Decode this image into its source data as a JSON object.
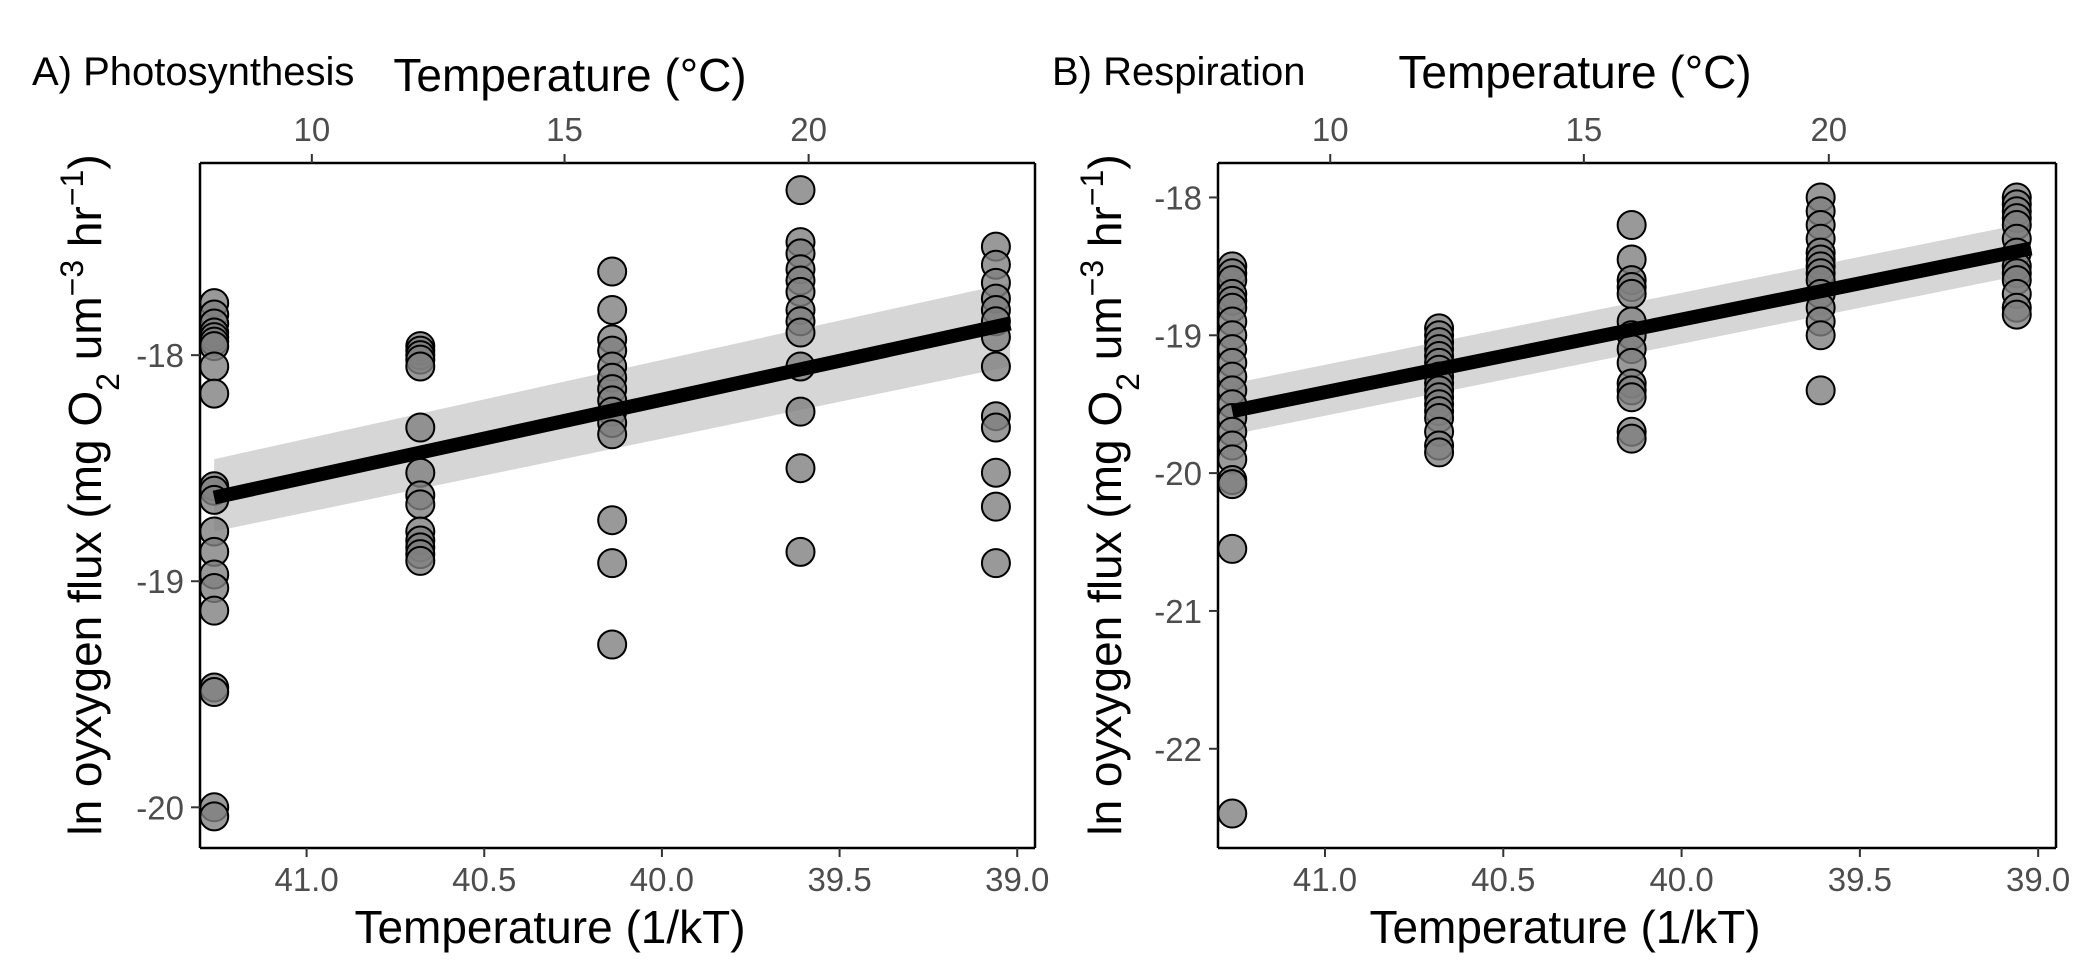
{
  "chart_data": [
    {
      "type": "scatter",
      "panel": "A",
      "title": "A) Photosynthesis",
      "x_top_label": "Temperature (°C)",
      "xlabel": "Temperature (1/kT)",
      "ylabel_parts": [
        "ln oyxygen flux (mg O",
        "2",
        " um",
        "−3",
        " hr",
        "−1",
        ")"
      ],
      "x_reversed": true,
      "xlim": [
        41.3,
        38.95
      ],
      "ylim": [
        -20.18,
        -17.15
      ],
      "x_ticks": [
        41.0,
        40.5,
        40.0,
        39.5,
        39.0
      ],
      "x_tick_labels": [
        "41.0",
        "40.5",
        "40.0",
        "39.5",
        "39.0"
      ],
      "x_top_ticks": [
        10,
        15,
        20
      ],
      "x_top_tick_labels": [
        "10",
        "15",
        "20"
      ],
      "y_ticks": [
        -20,
        -19,
        -18
      ],
      "y_tick_labels": [
        "-20",
        "-19",
        "-18"
      ],
      "groups": [
        {
          "x": 41.26,
          "y": [
            -17.77,
            -17.82,
            -17.86,
            -17.9,
            -17.92,
            -17.94,
            -17.96,
            -18.05,
            -18.17,
            -18.58,
            -18.6,
            -18.64,
            -18.78,
            -18.87,
            -18.97,
            -19.03,
            -19.13,
            -19.47,
            -19.49,
            -20.0,
            -20.04
          ]
        },
        {
          "x": 40.68,
          "y": [
            -17.96,
            -17.98,
            -18.0,
            -18.02,
            -18.05,
            -18.32,
            -18.52,
            -18.62,
            -18.66,
            -18.78,
            -18.82,
            -18.85,
            -18.88,
            -18.91
          ]
        },
        {
          "x": 40.14,
          "y": [
            -17.63,
            -17.8,
            -17.93,
            -17.98,
            -18.05,
            -18.1,
            -18.15,
            -18.2,
            -18.25,
            -18.3,
            -18.35,
            -18.73,
            -18.92,
            -19.28
          ]
        },
        {
          "x": 39.61,
          "y": [
            -17.27,
            -17.5,
            -17.55,
            -17.62,
            -17.67,
            -17.72,
            -17.8,
            -17.85,
            -17.9,
            -18.05,
            -18.25,
            -18.5,
            -18.87
          ]
        },
        {
          "x": 39.06,
          "y": [
            -17.52,
            -17.6,
            -17.68,
            -17.75,
            -17.8,
            -17.85,
            -17.92,
            -18.05,
            -18.27,
            -18.32,
            -18.52,
            -18.67,
            -18.92
          ]
        }
      ],
      "fit": {
        "x_start": 41.26,
        "y_start": -18.63,
        "x_end": 39.02,
        "y_end": -17.86
      },
      "ci": {
        "upper_start": -18.46,
        "lower_start": -18.78,
        "upper_end": -17.68,
        "lower_end": -18.05
      }
    },
    {
      "type": "scatter",
      "panel": "B",
      "title": "B) Respiration",
      "x_top_label": "Temperature (°C)",
      "xlabel": "Temperature (1/kT)",
      "ylabel_parts": [
        "ln oyxygen flux (mg O",
        "2",
        " um",
        "−3",
        " hr",
        "−1",
        ")"
      ],
      "x_reversed": true,
      "xlim": [
        41.3,
        38.95
      ],
      "ylim": [
        -22.72,
        -17.75
      ],
      "x_ticks": [
        41.0,
        40.5,
        40.0,
        39.5,
        39.0
      ],
      "x_tick_labels": [
        "41.0",
        "40.5",
        "40.0",
        "39.5",
        "39.0"
      ],
      "x_top_ticks": [
        10,
        15,
        20
      ],
      "x_top_tick_labels": [
        "10",
        "15",
        "20"
      ],
      "y_ticks": [
        -22,
        -21,
        -20,
        -19,
        -18
      ],
      "y_tick_labels": [
        "-22",
        "-21",
        "-20",
        "-19",
        "-18"
      ],
      "groups": [
        {
          "x": 41.26,
          "y": [
            -18.5,
            -18.55,
            -18.6,
            -18.7,
            -18.75,
            -18.8,
            -18.9,
            -19.0,
            -19.1,
            -19.2,
            -19.3,
            -19.4,
            -19.5,
            -19.6,
            -19.7,
            -19.8,
            -19.9,
            -20.05,
            -20.08,
            -20.55,
            -22.47
          ]
        },
        {
          "x": 40.68,
          "y": [
            -18.95,
            -19.0,
            -19.05,
            -19.1,
            -19.15,
            -19.2,
            -19.25,
            -19.3,
            -19.35,
            -19.4,
            -19.45,
            -19.5,
            -19.55,
            -19.6,
            -19.7,
            -19.8,
            -19.85
          ]
        },
        {
          "x": 40.14,
          "y": [
            -18.2,
            -18.45,
            -18.6,
            -18.65,
            -18.7,
            -18.9,
            -19.0,
            -19.1,
            -19.2,
            -19.35,
            -19.4,
            -19.45,
            -19.7,
            -19.75
          ]
        },
        {
          "x": 39.61,
          "y": [
            -18.0,
            -18.1,
            -18.2,
            -18.3,
            -18.4,
            -18.45,
            -18.5,
            -18.55,
            -18.6,
            -18.7,
            -18.8,
            -18.9,
            -19.0,
            -19.4
          ]
        },
        {
          "x": 39.06,
          "y": [
            -18.0,
            -18.05,
            -18.1,
            -18.15,
            -18.2,
            -18.3,
            -18.4,
            -18.5,
            -18.55,
            -18.6,
            -18.7,
            -18.8,
            -18.85
          ]
        }
      ],
      "fit": {
        "x_start": 41.26,
        "y_start": -19.55,
        "x_end": 39.02,
        "y_end": -18.37
      },
      "ci": {
        "upper_start": -19.35,
        "lower_start": -19.72,
        "upper_end": -18.18,
        "lower_end": -18.55
      }
    }
  ]
}
